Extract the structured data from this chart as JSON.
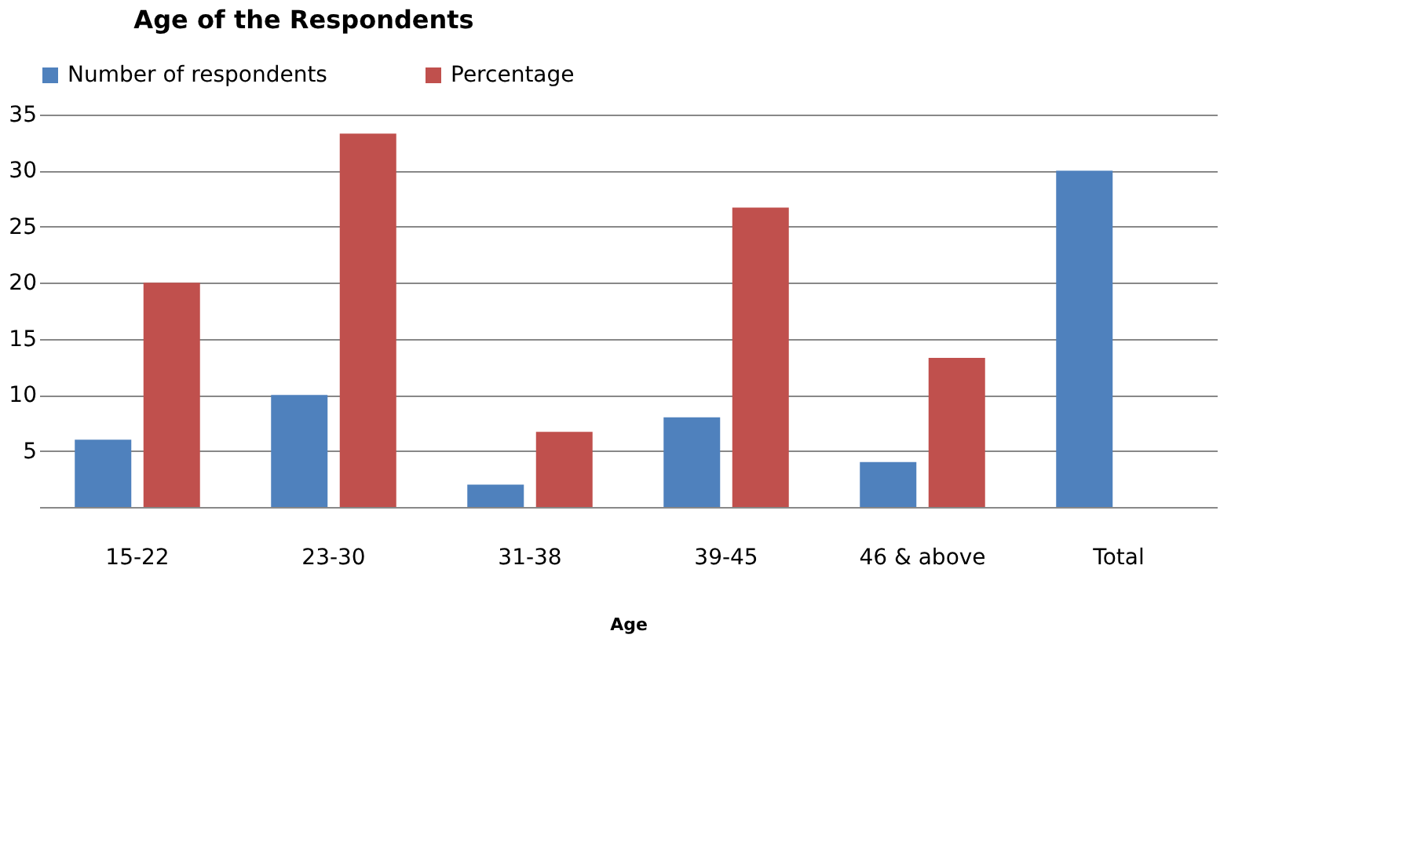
{
  "chart_data": {
    "type": "bar",
    "title": "Age of the Respondents",
    "xlabel": "Age",
    "categories": [
      "15-22",
      "23-30",
      "31-38",
      "39-45",
      "46 & above",
      "Total"
    ],
    "series": [
      {
        "name": "Number of respondents",
        "color": "#4f81bd",
        "values": [
          6,
          10,
          2,
          8,
          4,
          30
        ]
      },
      {
        "name": "Percentage",
        "color": "#c0504d",
        "values": [
          20,
          33.3,
          6.7,
          26.7,
          13.3,
          null
        ]
      }
    ],
    "ylim": [
      0,
      35
    ],
    "yticks": [
      {
        "value": 0,
        "label": null
      },
      5,
      10,
      15,
      20,
      25,
      30,
      35
    ],
    "grid": "y",
    "legend": "top"
  }
}
